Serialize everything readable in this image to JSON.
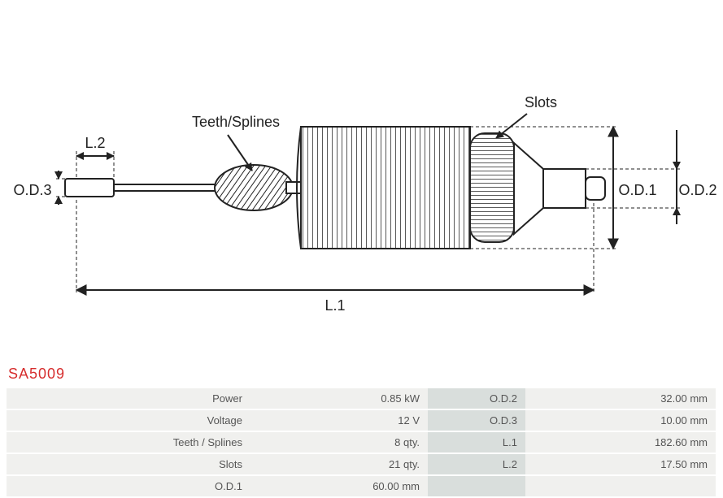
{
  "partNumber": "SA5009",
  "colors": {
    "partNumber": "#d62e2e",
    "diagramStroke": "#222222",
    "rowStripeLight": "#f0f0ee",
    "rowStripeLabel": "#d9dedc",
    "text": "#555555",
    "background": "#ffffff"
  },
  "diagram": {
    "labels": {
      "teethSplines": "Teeth/Splines",
      "slots": "Slots",
      "L1": "L.1",
      "L2": "L.2",
      "OD1": "O.D.1",
      "OD2": "O.D.2",
      "OD3": "O.D.3"
    }
  },
  "specs": {
    "rows": [
      {
        "label1": "Power",
        "value1": "0.85 kW",
        "label2": "O.D.2",
        "value2": "32.00 mm"
      },
      {
        "label1": "Voltage",
        "value1": "12 V",
        "label2": "O.D.3",
        "value2": "10.00 mm"
      },
      {
        "label1": "Teeth / Splines",
        "value1": "8 qty.",
        "label2": "L.1",
        "value2": "182.60 mm"
      },
      {
        "label1": "Slots",
        "value1": "21 qty.",
        "label2": "L.2",
        "value2": "17.50 mm"
      },
      {
        "label1": "O.D.1",
        "value1": "60.00 mm",
        "label2": "",
        "value2": ""
      }
    ]
  }
}
